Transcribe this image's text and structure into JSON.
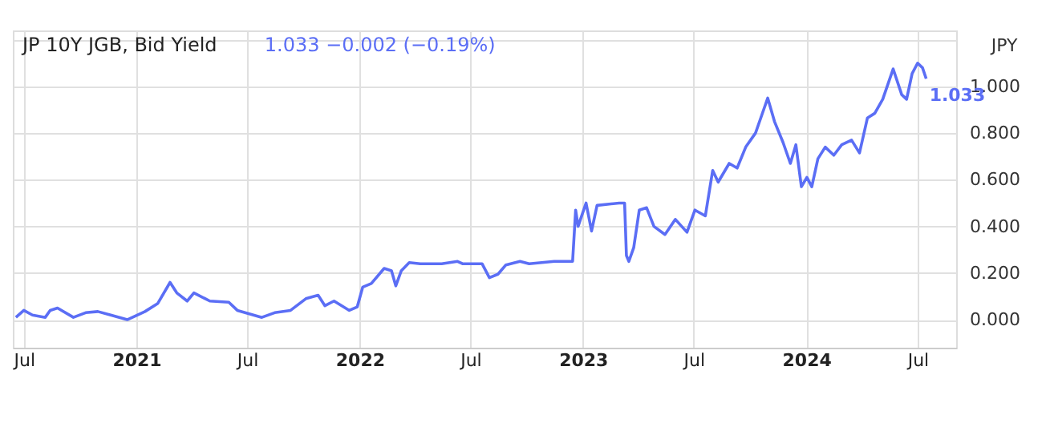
{
  "chart_data": {
    "type": "line",
    "title": "JP 10Y JGB, Bid Yield",
    "subtitle": "1.033  −0.002 (−0.19%)",
    "annotations": [
      "JPY",
      {
        "text": "1.033",
        "x": "2024-07-15",
        "y": 1.033
      }
    ],
    "x": [
      "2020-06-18",
      "2020-07-01",
      "2020-07-15",
      "2020-08-05",
      "2020-08-13",
      "2020-08-25",
      "2020-09-20",
      "2020-10-10",
      "2020-10-30",
      "2020-11-20",
      "2020-12-17",
      "2021-01-15",
      "2021-02-05",
      "2021-02-25",
      "2021-03-08",
      "2021-03-25",
      "2021-04-05",
      "2021-05-01",
      "2021-06-01",
      "2021-06-15",
      "2021-07-25",
      "2021-08-15",
      "2021-09-10",
      "2021-10-05",
      "2021-10-25",
      "2021-11-05",
      "2021-11-20",
      "2021-12-15",
      "2021-12-28",
      "2022-01-06",
      "2022-01-20",
      "2022-02-10",
      "2022-02-22",
      "2022-03-01",
      "2022-03-10",
      "2022-03-23",
      "2022-04-10",
      "2022-05-15",
      "2022-06-10",
      "2022-06-18",
      "2022-07-20",
      "2022-08-01",
      "2022-08-15",
      "2022-08-28",
      "2022-09-20",
      "2022-10-05",
      "2022-11-15",
      "2022-12-15",
      "2022-12-20",
      "2022-12-24",
      "2023-01-06",
      "2023-01-15",
      "2023-01-24",
      "2023-03-01",
      "2023-03-10",
      "2023-03-13",
      "2023-03-17",
      "2023-03-25",
      "2023-04-03",
      "2023-04-15",
      "2023-04-27",
      "2023-05-15",
      "2023-06-01",
      "2023-06-20",
      "2023-07-03",
      "2023-07-20",
      "2023-08-01",
      "2023-08-10",
      "2023-08-28",
      "2023-09-10",
      "2023-09-24",
      "2023-10-10",
      "2023-10-20",
      "2023-10-30",
      "2023-11-10",
      "2023-11-24",
      "2023-12-06",
      "2023-12-15",
      "2023-12-24",
      "2024-01-02",
      "2024-01-10",
      "2024-01-20",
      "2024-02-01",
      "2024-02-15",
      "2024-02-28",
      "2024-03-15",
      "2024-03-28",
      "2024-04-10",
      "2024-04-22",
      "2024-05-05",
      "2024-05-22",
      "2024-06-05",
      "2024-06-13",
      "2024-06-22",
      "2024-07-01",
      "2024-07-09",
      "2024-07-15"
    ],
    "series": [
      {
        "color": "#5b6ef5",
        "values": [
          0.01,
          0.04,
          0.02,
          0.01,
          0.04,
          0.05,
          0.01,
          0.03,
          0.035,
          0.02,
          0.0,
          0.035,
          0.07,
          0.16,
          0.115,
          0.08,
          0.115,
          0.08,
          0.075,
          0.04,
          0.01,
          0.03,
          0.04,
          0.09,
          0.105,
          0.06,
          0.08,
          0.04,
          0.055,
          0.14,
          0.155,
          0.22,
          0.21,
          0.145,
          0.21,
          0.245,
          0.24,
          0.24,
          0.25,
          0.24,
          0.24,
          0.18,
          0.195,
          0.235,
          0.25,
          0.24,
          0.25,
          0.25,
          0.47,
          0.4,
          0.5,
          0.38,
          0.49,
          0.5,
          0.5,
          0.275,
          0.25,
          0.31,
          0.47,
          0.48,
          0.4,
          0.365,
          0.43,
          0.375,
          0.47,
          0.445,
          0.64,
          0.59,
          0.67,
          0.65,
          0.74,
          0.8,
          0.875,
          0.95,
          0.85,
          0.76,
          0.67,
          0.75,
          0.57,
          0.61,
          0.57,
          0.69,
          0.74,
          0.705,
          0.75,
          0.77,
          0.715,
          0.865,
          0.885,
          0.945,
          1.075,
          0.965,
          0.945,
          1.055,
          1.1,
          1.08,
          1.033
        ]
      }
    ],
    "xlim": [
      "2020-06-13",
      "2024-09-02"
    ],
    "xticks": [
      {
        "value": "2020-07-01",
        "label": "Jul"
      },
      {
        "value": "2021-01-01",
        "label": "2021"
      },
      {
        "value": "2021-07-01",
        "label": "Jul"
      },
      {
        "value": "2022-01-01",
        "label": "2022"
      },
      {
        "value": "2022-07-01",
        "label": "Jul"
      },
      {
        "value": "2023-01-01",
        "label": "2023"
      },
      {
        "value": "2023-07-01",
        "label": "Jul"
      },
      {
        "value": "2024-01-01",
        "label": "2024"
      },
      {
        "value": "2024-07-01",
        "label": "Jul"
      }
    ],
    "ylim": [
      -0.12,
      1.24
    ],
    "yticks": [
      {
        "value": 0,
        "label": "0.000"
      },
      {
        "value": 0.2,
        "label": "0.200"
      },
      {
        "value": 0.4,
        "label": "0.400"
      },
      {
        "value": 0.6,
        "label": "0.600"
      },
      {
        "value": 0.8,
        "label": "0.800"
      },
      {
        "value": 1.0,
        "label": "1.000"
      },
      {
        "value": 1.2,
        "label": null
      }
    ],
    "grid": true,
    "marker": "none",
    "line_style": "solid"
  }
}
